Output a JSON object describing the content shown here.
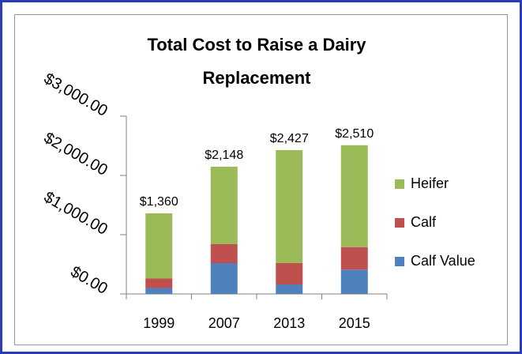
{
  "chart_data": {
    "type": "stacked_bar",
    "title": [
      "Total Cost to Raise a Dairy",
      "Replacement"
    ],
    "categories": [
      "1999",
      "2007",
      "2013",
      "2015"
    ],
    "series": [
      {
        "name": "Calf Value",
        "color": "#4f81bd",
        "values": [
          100,
          520,
          160,
          410
        ]
      },
      {
        "name": "Calf",
        "color": "#c0504d",
        "values": [
          160,
          320,
          360,
          380
        ]
      },
      {
        "name": "Heifer",
        "color": "#9bbb59",
        "values": [
          1100,
          1308,
          1907,
          1720
        ]
      }
    ],
    "totals": [
      1360,
      2148,
      2427,
      2510
    ],
    "total_labels": [
      "$1,360",
      "$2,148",
      "$2,427",
      "$2,510"
    ],
    "ylim": [
      0,
      3000
    ],
    "yticks": [
      {
        "value": 0,
        "label": "$0.00"
      },
      {
        "value": 1000,
        "label": "$1,000.00"
      },
      {
        "value": 2000,
        "label": "$2,000.00"
      },
      {
        "value": 3000,
        "label": "$3,000.00"
      }
    ],
    "legend": "right"
  }
}
